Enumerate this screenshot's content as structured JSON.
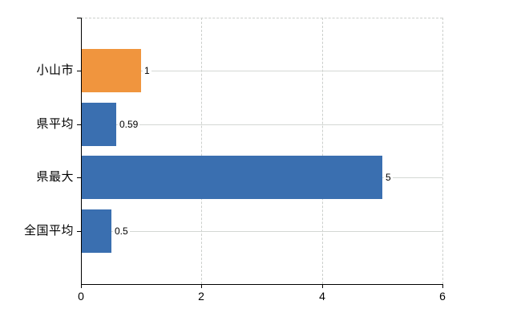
{
  "chart_data": {
    "type": "bar",
    "orientation": "horizontal",
    "title": "",
    "xlabel": "",
    "ylabel": "",
    "categories": [
      "小山市",
      "県平均",
      "県最大",
      "全国平均"
    ],
    "values": [
      1,
      0.59,
      5,
      0.5
    ],
    "value_labels": [
      "1",
      "0.59",
      "5",
      "0.5"
    ],
    "bar_colors": [
      "#f0953e",
      "#3a6fb0",
      "#3a6fb0",
      "#3a6fb0"
    ],
    "xlim": [
      0,
      6
    ],
    "xticks": [
      0,
      2,
      4,
      6
    ],
    "xtick_labels": [
      "0",
      "2",
      "4",
      "6"
    ],
    "legend": null,
    "grid": {
      "vertical_gridlines": true,
      "horizontal_category_lines": true,
      "solid_gridline_color": "#d4d8d4",
      "dashed_gridline_color": "#cccfcc"
    },
    "axis_color": "#000000",
    "background_color": "#ffffff"
  }
}
